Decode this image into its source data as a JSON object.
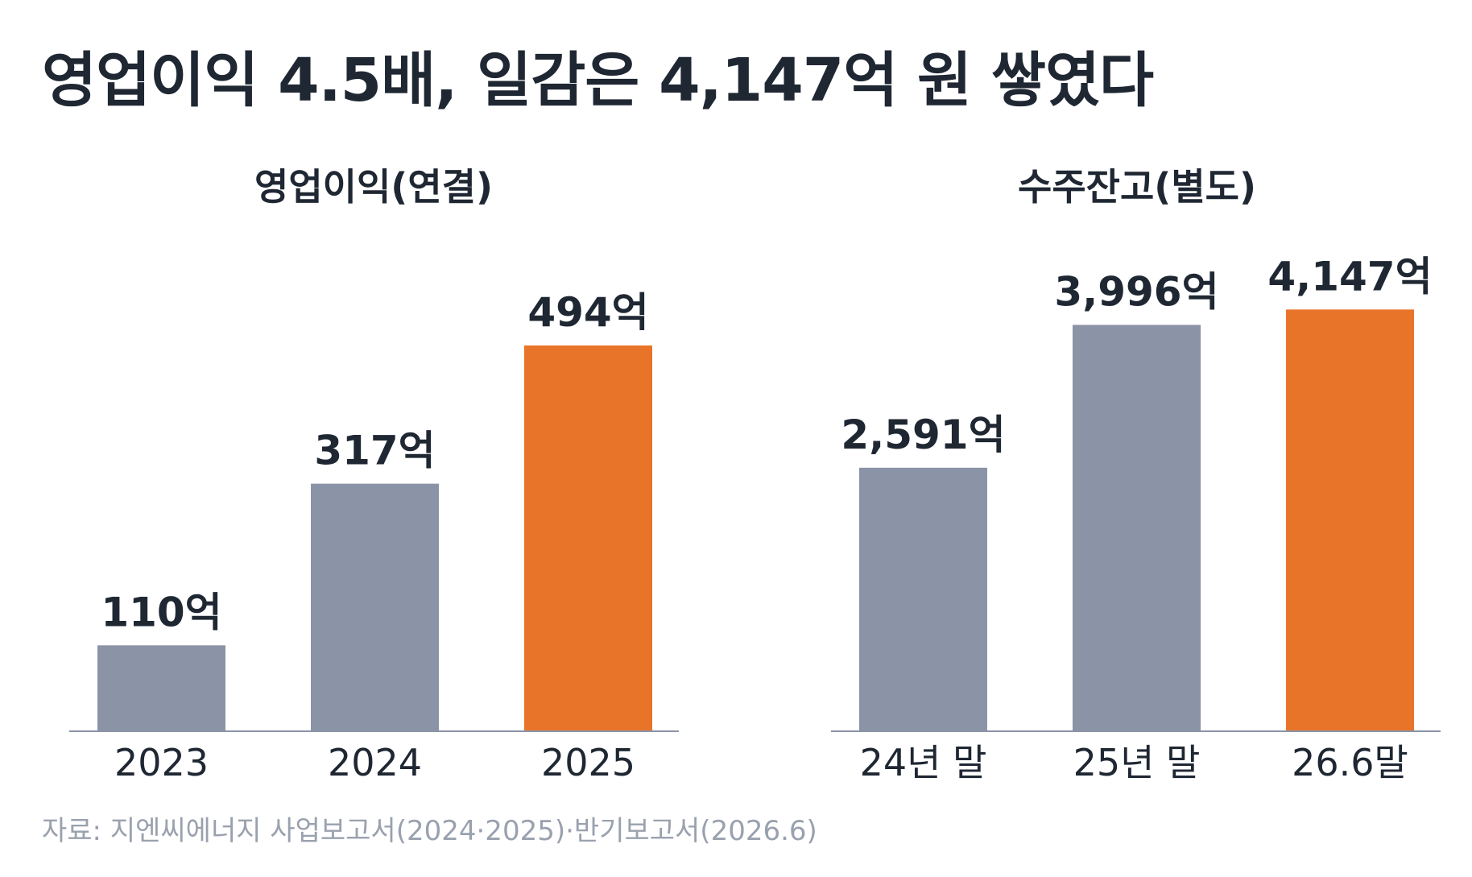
{
  "title": "영업이익 4.5배, 일감은 4,147억 원 쌓였다",
  "source": "자료: 지엔씨에너지 사업보고서(2024·2025)·반기보고서(2026.6)",
  "colors": {
    "past": "#8b94a6",
    "highlight": "#e8742a",
    "axis": "#8b94a6"
  },
  "chart_data": [
    {
      "type": "bar",
      "title": "영업이익(연결)",
      "categories": [
        "2023",
        "2024",
        "2025"
      ],
      "values": [
        110,
        317,
        494
      ],
      "labels": [
        "110억",
        "317억",
        "494억"
      ],
      "highlight_index": 2,
      "ylim": [
        0,
        560
      ],
      "grid": false,
      "legend": "none"
    },
    {
      "type": "bar",
      "title": "수주잔고(별도)",
      "categories": [
        "24년 말",
        "25년 말",
        "26.6말"
      ],
      "values": [
        2591,
        3996,
        4147
      ],
      "labels": [
        "2,591억",
        "3,996억",
        "4,147억"
      ],
      "highlight_index": 2,
      "ylim": [
        0,
        4300
      ],
      "grid": false,
      "legend": "none"
    }
  ]
}
